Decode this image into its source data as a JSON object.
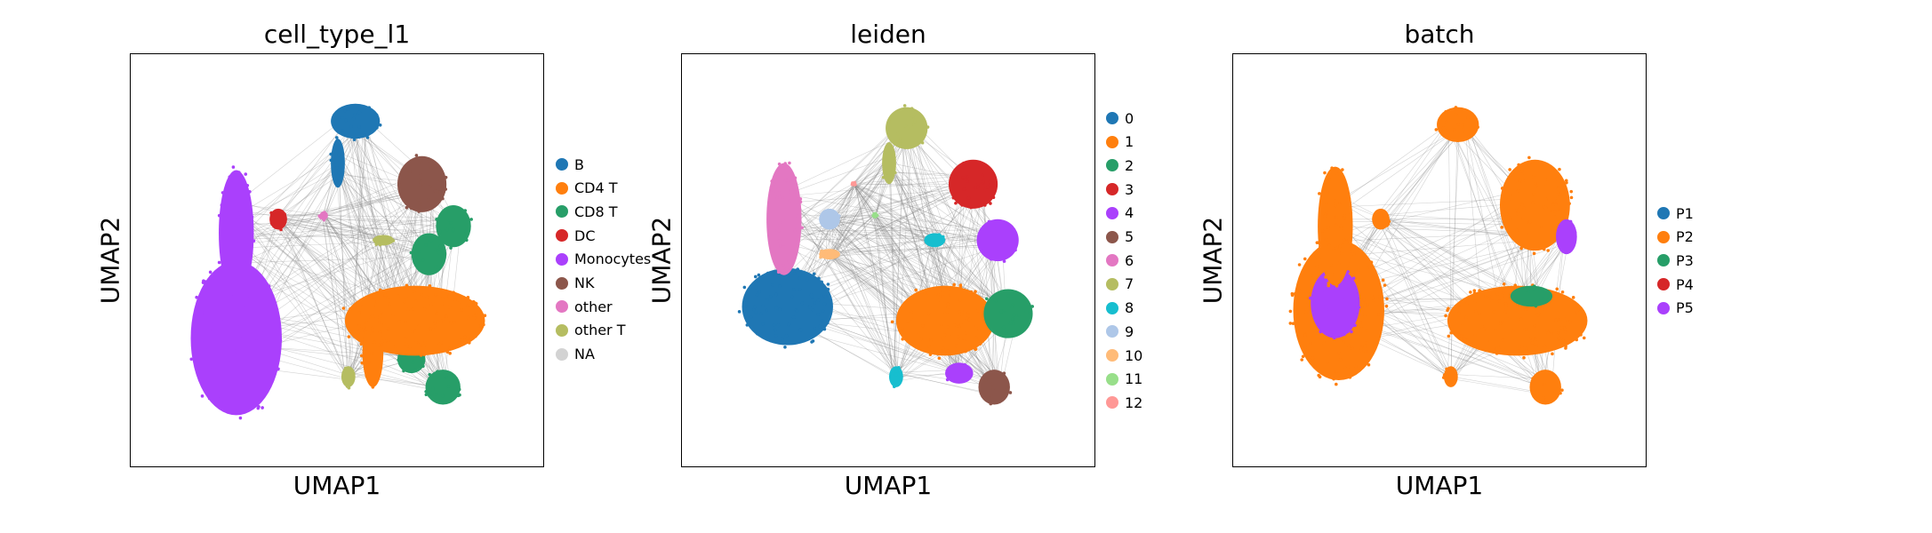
{
  "chart_data": [
    {
      "type": "scatter",
      "title": "cell_type_l1",
      "xlabel": "UMAP1",
      "ylabel": "UMAP2",
      "grid": false,
      "legend_placement": "right",
      "edges_color": "#808080",
      "legend": [
        {
          "label": "B",
          "color": "#1f77b4"
        },
        {
          "label": "CD4 T",
          "color": "#ff7f0e"
        },
        {
          "label": "CD8 T",
          "color": "#279e68"
        },
        {
          "label": "DC",
          "color": "#d62728"
        },
        {
          "label": "Monocytes",
          "color": "#aa40fc"
        },
        {
          "label": "NK",
          "color": "#8c564b"
        },
        {
          "label": "other",
          "color": "#e377c2"
        },
        {
          "label": "other T",
          "color": "#b5bd61"
        },
        {
          "label": "NA",
          "color": "#d3d3d3"
        }
      ],
      "clusters": [
        {
          "label": "Monocytes",
          "x": 0.21,
          "y": 0.28,
          "rx": 0.13,
          "ry": 0.22,
          "color": "#aa40fc"
        },
        {
          "label": "Monocytes",
          "x": 0.21,
          "y": 0.58,
          "rx": 0.05,
          "ry": 0.18,
          "color": "#aa40fc"
        },
        {
          "label": "B",
          "x": 0.55,
          "y": 0.9,
          "rx": 0.07,
          "ry": 0.05,
          "color": "#1f77b4"
        },
        {
          "label": "B",
          "x": 0.5,
          "y": 0.78,
          "rx": 0.02,
          "ry": 0.07,
          "color": "#1f77b4"
        },
        {
          "label": "NK",
          "x": 0.74,
          "y": 0.72,
          "rx": 0.07,
          "ry": 0.08,
          "color": "#8c564b"
        },
        {
          "label": "CD8 T",
          "x": 0.83,
          "y": 0.6,
          "rx": 0.05,
          "ry": 0.06,
          "color": "#279e68"
        },
        {
          "label": "CD8 T",
          "x": 0.76,
          "y": 0.52,
          "rx": 0.05,
          "ry": 0.06,
          "color": "#279e68"
        },
        {
          "label": "CD8 T",
          "x": 0.8,
          "y": 0.14,
          "rx": 0.05,
          "ry": 0.05,
          "color": "#279e68"
        },
        {
          "label": "CD8 T",
          "x": 0.71,
          "y": 0.22,
          "rx": 0.04,
          "ry": 0.04,
          "color": "#279e68"
        },
        {
          "label": "CD4 T",
          "x": 0.72,
          "y": 0.33,
          "rx": 0.2,
          "ry": 0.1,
          "color": "#ff7f0e"
        },
        {
          "label": "CD4 T",
          "x": 0.6,
          "y": 0.24,
          "rx": 0.03,
          "ry": 0.1,
          "color": "#ff7f0e"
        },
        {
          "label": "DC",
          "x": 0.33,
          "y": 0.62,
          "rx": 0.025,
          "ry": 0.03,
          "color": "#d62728"
        },
        {
          "label": "other T",
          "x": 0.53,
          "y": 0.17,
          "rx": 0.02,
          "ry": 0.03,
          "color": "#b5bd61"
        },
        {
          "label": "other T",
          "x": 0.63,
          "y": 0.56,
          "rx": 0.03,
          "ry": 0.015,
          "color": "#b5bd61"
        },
        {
          "label": "other",
          "x": 0.46,
          "y": 0.63,
          "rx": 0.012,
          "ry": 0.012,
          "color": "#e377c2"
        }
      ]
    },
    {
      "type": "scatter",
      "title": "leiden",
      "xlabel": "UMAP1",
      "ylabel": "UMAP2",
      "grid": false,
      "legend_placement": "right",
      "edges_color": "#808080",
      "legend": [
        {
          "label": "0",
          "color": "#1f77b4"
        },
        {
          "label": "1",
          "color": "#ff7f0e"
        },
        {
          "label": "2",
          "color": "#279e68"
        },
        {
          "label": "3",
          "color": "#d62728"
        },
        {
          "label": "4",
          "color": "#aa40fc"
        },
        {
          "label": "5",
          "color": "#8c564b"
        },
        {
          "label": "6",
          "color": "#e377c2"
        },
        {
          "label": "7",
          "color": "#b5bd61"
        },
        {
          "label": "8",
          "color": "#17becf"
        },
        {
          "label": "9",
          "color": "#aec7e8"
        },
        {
          "label": "10",
          "color": "#ffbb78"
        },
        {
          "label": "11",
          "color": "#98df8a"
        },
        {
          "label": "12",
          "color": "#ff9896"
        }
      ],
      "clusters": [
        {
          "label": "0",
          "x": 0.21,
          "y": 0.37,
          "rx": 0.13,
          "ry": 0.11,
          "color": "#1f77b4"
        },
        {
          "label": "6",
          "x": 0.2,
          "y": 0.62,
          "rx": 0.05,
          "ry": 0.16,
          "color": "#e377c2"
        },
        {
          "label": "9",
          "x": 0.33,
          "y": 0.62,
          "rx": 0.03,
          "ry": 0.03,
          "color": "#aec7e8"
        },
        {
          "label": "10",
          "x": 0.33,
          "y": 0.52,
          "rx": 0.03,
          "ry": 0.015,
          "color": "#ffbb78"
        },
        {
          "label": "7",
          "x": 0.55,
          "y": 0.88,
          "rx": 0.06,
          "ry": 0.06,
          "color": "#b5bd61"
        },
        {
          "label": "7",
          "x": 0.5,
          "y": 0.78,
          "rx": 0.02,
          "ry": 0.06,
          "color": "#b5bd61"
        },
        {
          "label": "3",
          "x": 0.74,
          "y": 0.72,
          "rx": 0.07,
          "ry": 0.07,
          "color": "#d62728"
        },
        {
          "label": "4",
          "x": 0.81,
          "y": 0.56,
          "rx": 0.06,
          "ry": 0.06,
          "color": "#aa40fc"
        },
        {
          "label": "4",
          "x": 0.7,
          "y": 0.18,
          "rx": 0.04,
          "ry": 0.03,
          "color": "#aa40fc"
        },
        {
          "label": "8",
          "x": 0.63,
          "y": 0.56,
          "rx": 0.03,
          "ry": 0.02,
          "color": "#17becf"
        },
        {
          "label": "8",
          "x": 0.52,
          "y": 0.17,
          "rx": 0.02,
          "ry": 0.03,
          "color": "#17becf"
        },
        {
          "label": "1",
          "x": 0.66,
          "y": 0.33,
          "rx": 0.14,
          "ry": 0.1,
          "color": "#ff7f0e"
        },
        {
          "label": "2",
          "x": 0.84,
          "y": 0.35,
          "rx": 0.07,
          "ry": 0.07,
          "color": "#279e68"
        },
        {
          "label": "5",
          "x": 0.8,
          "y": 0.14,
          "rx": 0.045,
          "ry": 0.05,
          "color": "#8c564b"
        },
        {
          "label": "11",
          "x": 0.46,
          "y": 0.63,
          "rx": 0.008,
          "ry": 0.008,
          "color": "#98df8a"
        },
        {
          "label": "12",
          "x": 0.4,
          "y": 0.72,
          "rx": 0.006,
          "ry": 0.006,
          "color": "#ff9896"
        }
      ]
    },
    {
      "type": "scatter",
      "title": "batch",
      "xlabel": "UMAP1",
      "ylabel": "UMAP2",
      "grid": false,
      "legend_placement": "right",
      "edges_color": "#808080",
      "legend": [
        {
          "label": "P1",
          "color": "#1f77b4"
        },
        {
          "label": "P2",
          "color": "#ff7f0e"
        },
        {
          "label": "P3",
          "color": "#279e68"
        },
        {
          "label": "P4",
          "color": "#d62728"
        },
        {
          "label": "P5",
          "color": "#aa40fc"
        }
      ],
      "clusters": [
        {
          "label": "P2",
          "x": 0.21,
          "y": 0.36,
          "rx": 0.13,
          "ry": 0.2,
          "color": "#ff7f0e"
        },
        {
          "label": "P5",
          "x": 0.2,
          "y": 0.38,
          "rx": 0.07,
          "ry": 0.1,
          "color": "#aa40fc"
        },
        {
          "label": "P2",
          "x": 0.2,
          "y": 0.6,
          "rx": 0.05,
          "ry": 0.17,
          "color": "#ff7f0e"
        },
        {
          "label": "P2",
          "x": 0.55,
          "y": 0.89,
          "rx": 0.06,
          "ry": 0.05,
          "color": "#ff7f0e"
        },
        {
          "label": "P2",
          "x": 0.77,
          "y": 0.66,
          "rx": 0.1,
          "ry": 0.13,
          "color": "#ff7f0e"
        },
        {
          "label": "P5",
          "x": 0.86,
          "y": 0.57,
          "rx": 0.03,
          "ry": 0.05,
          "color": "#aa40fc"
        },
        {
          "label": "P2",
          "x": 0.72,
          "y": 0.33,
          "rx": 0.2,
          "ry": 0.1,
          "color": "#ff7f0e"
        },
        {
          "label": "P3",
          "x": 0.76,
          "y": 0.4,
          "rx": 0.06,
          "ry": 0.03,
          "color": "#279e68"
        },
        {
          "label": "P2",
          "x": 0.8,
          "y": 0.14,
          "rx": 0.045,
          "ry": 0.05,
          "color": "#ff7f0e"
        },
        {
          "label": "P2",
          "x": 0.33,
          "y": 0.62,
          "rx": 0.025,
          "ry": 0.03,
          "color": "#ff7f0e"
        },
        {
          "label": "P2",
          "x": 0.53,
          "y": 0.17,
          "rx": 0.02,
          "ry": 0.03,
          "color": "#ff7f0e"
        }
      ]
    }
  ]
}
